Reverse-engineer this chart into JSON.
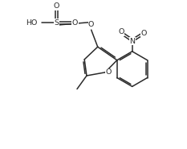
{
  "background": "#ffffff",
  "line_color": "#2a2a2a",
  "line_width": 1.1,
  "font_size": 6.8,
  "fig_width": 2.33,
  "fig_height": 1.85,
  "dpi": 100,
  "xlim": [
    0,
    10
  ],
  "ylim": [
    0,
    8
  ]
}
